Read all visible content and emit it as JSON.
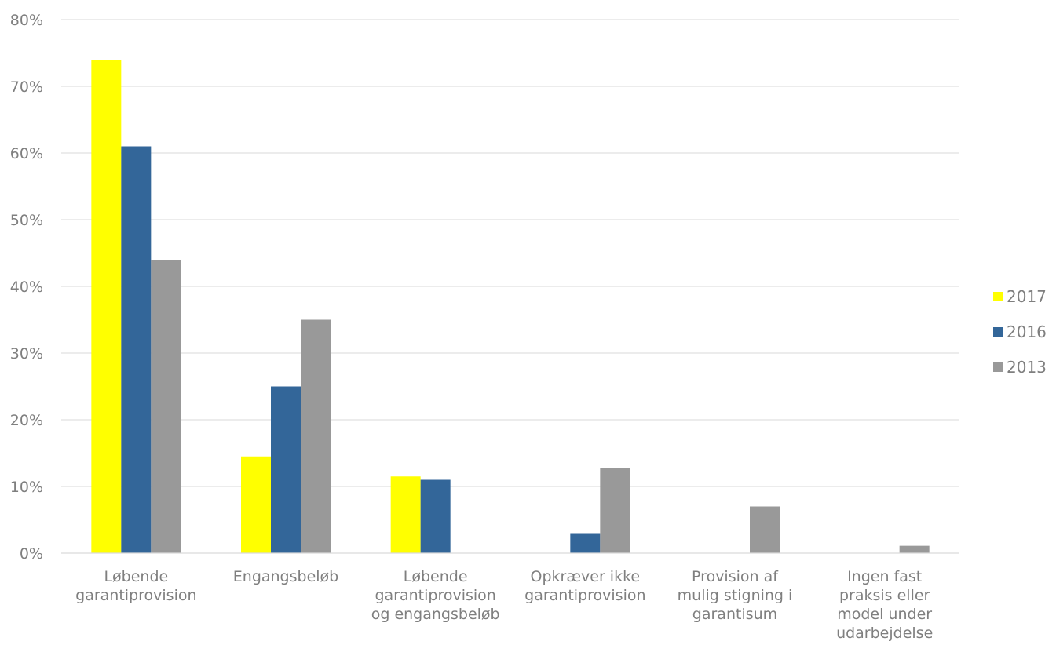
{
  "chart_data": {
    "type": "bar",
    "categories": [
      [
        "Løbende",
        "garantiprovision"
      ],
      [
        "Engangsbeløb"
      ],
      [
        "Løbende",
        "garantiprovision",
        "og engangsbeløb"
      ],
      [
        "Opkræver ikke",
        "garantiprovision"
      ],
      [
        "Provision af",
        "mulig stigning i",
        "garantisum"
      ],
      [
        "Ingen fast",
        "praksis eller",
        "model under",
        "udarbejdelse"
      ]
    ],
    "series": [
      {
        "name": "2017",
        "color": "#ffff00",
        "values": [
          74,
          14.5,
          11.5,
          0,
          0,
          0
        ]
      },
      {
        "name": "2016",
        "color": "#336699",
        "values": [
          61,
          25,
          11,
          3,
          0,
          0
        ]
      },
      {
        "name": "2013",
        "color": "#999999",
        "values": [
          44,
          35,
          0,
          12.8,
          7,
          1.1
        ]
      }
    ],
    "yticks": [
      "0%",
      "10%",
      "20%",
      "30%",
      "40%",
      "50%",
      "60%",
      "70%",
      "80%"
    ],
    "ylim": [
      0,
      80
    ],
    "grid": true,
    "legend_position": "right"
  }
}
